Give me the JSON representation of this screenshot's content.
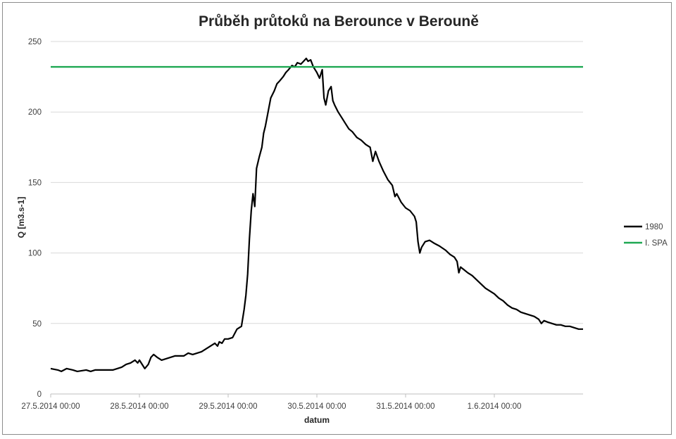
{
  "chart_data": {
    "type": "line",
    "title": "Průběh průtoků na Berounce v Berouně",
    "xlabel": "datum",
    "ylabel": "Q [m3.s-1]",
    "ylim": [
      0,
      250
    ],
    "yticks": [
      0,
      50,
      100,
      150,
      200,
      250
    ],
    "x_range_days": [
      0,
      6.0
    ],
    "x_ticks": [
      {
        "x": 0,
        "label": "27.5.2014 00:00"
      },
      {
        "x": 1,
        "label": "28.5.2014 00:00"
      },
      {
        "x": 2,
        "label": "29.5.2014 00:00"
      },
      {
        "x": 3,
        "label": "30.5.2014 00:00"
      },
      {
        "x": 4,
        "label": "31.5.2014 00:00"
      },
      {
        "x": 5,
        "label": "1.6.2014 00:00"
      }
    ],
    "grid": true,
    "legend_position": "right",
    "series": [
      {
        "name": "1980",
        "color": "#000000",
        "points": [
          [
            0.0,
            18
          ],
          [
            0.08,
            17
          ],
          [
            0.12,
            16
          ],
          [
            0.18,
            18
          ],
          [
            0.25,
            17
          ],
          [
            0.3,
            16
          ],
          [
            0.4,
            17
          ],
          [
            0.45,
            16
          ],
          [
            0.5,
            17
          ],
          [
            0.6,
            17
          ],
          [
            0.7,
            17
          ],
          [
            0.8,
            19
          ],
          [
            0.85,
            21
          ],
          [
            0.9,
            22
          ],
          [
            0.95,
            24
          ],
          [
            0.98,
            22
          ],
          [
            1.0,
            24
          ],
          [
            1.03,
            21
          ],
          [
            1.06,
            18
          ],
          [
            1.1,
            21
          ],
          [
            1.13,
            26
          ],
          [
            1.16,
            28
          ],
          [
            1.2,
            26
          ],
          [
            1.25,
            24
          ],
          [
            1.3,
            25
          ],
          [
            1.35,
            26
          ],
          [
            1.4,
            27
          ],
          [
            1.45,
            27
          ],
          [
            1.5,
            27
          ],
          [
            1.55,
            29
          ],
          [
            1.6,
            28
          ],
          [
            1.65,
            29
          ],
          [
            1.7,
            30
          ],
          [
            1.75,
            32
          ],
          [
            1.8,
            34
          ],
          [
            1.85,
            36
          ],
          [
            1.88,
            34
          ],
          [
            1.9,
            37
          ],
          [
            1.93,
            36
          ],
          [
            1.96,
            39
          ],
          [
            2.0,
            39
          ],
          [
            2.05,
            40
          ],
          [
            2.1,
            46
          ],
          [
            2.15,
            48
          ],
          [
            2.18,
            60
          ],
          [
            2.2,
            70
          ],
          [
            2.22,
            85
          ],
          [
            2.24,
            110
          ],
          [
            2.26,
            130
          ],
          [
            2.28,
            142
          ],
          [
            2.3,
            133
          ],
          [
            2.32,
            160
          ],
          [
            2.35,
            168
          ],
          [
            2.38,
            175
          ],
          [
            2.4,
            185
          ],
          [
            2.42,
            190
          ],
          [
            2.45,
            200
          ],
          [
            2.48,
            210
          ],
          [
            2.52,
            215
          ],
          [
            2.55,
            220
          ],
          [
            2.58,
            222
          ],
          [
            2.62,
            225
          ],
          [
            2.65,
            228
          ],
          [
            2.68,
            230
          ],
          [
            2.72,
            233
          ],
          [
            2.75,
            232
          ],
          [
            2.78,
            235
          ],
          [
            2.82,
            234
          ],
          [
            2.85,
            236
          ],
          [
            2.88,
            238
          ],
          [
            2.9,
            236
          ],
          [
            2.93,
            237
          ],
          [
            2.96,
            232
          ],
          [
            3.0,
            228
          ],
          [
            3.03,
            224
          ],
          [
            3.06,
            230
          ],
          [
            3.08,
            210
          ],
          [
            3.1,
            205
          ],
          [
            3.13,
            215
          ],
          [
            3.16,
            218
          ],
          [
            3.18,
            208
          ],
          [
            3.2,
            205
          ],
          [
            3.24,
            200
          ],
          [
            3.28,
            196
          ],
          [
            3.32,
            192
          ],
          [
            3.36,
            188
          ],
          [
            3.4,
            186
          ],
          [
            3.45,
            182
          ],
          [
            3.5,
            180
          ],
          [
            3.55,
            177
          ],
          [
            3.6,
            175
          ],
          [
            3.63,
            165
          ],
          [
            3.66,
            172
          ],
          [
            3.7,
            165
          ],
          [
            3.75,
            158
          ],
          [
            3.8,
            152
          ],
          [
            3.85,
            148
          ],
          [
            3.88,
            140
          ],
          [
            3.9,
            142
          ],
          [
            3.95,
            136
          ],
          [
            4.0,
            132
          ],
          [
            4.05,
            130
          ],
          [
            4.1,
            126
          ],
          [
            4.12,
            122
          ],
          [
            4.14,
            108
          ],
          [
            4.16,
            100
          ],
          [
            4.18,
            104
          ],
          [
            4.22,
            108
          ],
          [
            4.27,
            109
          ],
          [
            4.32,
            107
          ],
          [
            4.38,
            105
          ],
          [
            4.45,
            102
          ],
          [
            4.5,
            99
          ],
          [
            4.55,
            97
          ],
          [
            4.58,
            94
          ],
          [
            4.6,
            86
          ],
          [
            4.62,
            90
          ],
          [
            4.66,
            88
          ],
          [
            4.7,
            86
          ],
          [
            4.75,
            84
          ],
          [
            4.8,
            81
          ],
          [
            4.85,
            78
          ],
          [
            4.9,
            75
          ],
          [
            4.95,
            73
          ],
          [
            5.0,
            71
          ],
          [
            5.05,
            68
          ],
          [
            5.1,
            66
          ],
          [
            5.15,
            63
          ],
          [
            5.2,
            61
          ],
          [
            5.25,
            60
          ],
          [
            5.3,
            58
          ],
          [
            5.35,
            57
          ],
          [
            5.4,
            56
          ],
          [
            5.45,
            55
          ],
          [
            5.5,
            53
          ],
          [
            5.53,
            50
          ],
          [
            5.56,
            52
          ],
          [
            5.6,
            51
          ],
          [
            5.65,
            50
          ],
          [
            5.7,
            49
          ],
          [
            5.75,
            49
          ],
          [
            5.8,
            48
          ],
          [
            5.85,
            48
          ],
          [
            5.9,
            47
          ],
          [
            5.95,
            46
          ],
          [
            6.0,
            46
          ]
        ]
      },
      {
        "name": "I. SPA",
        "color": "#1ea852",
        "constant": 232
      }
    ]
  }
}
